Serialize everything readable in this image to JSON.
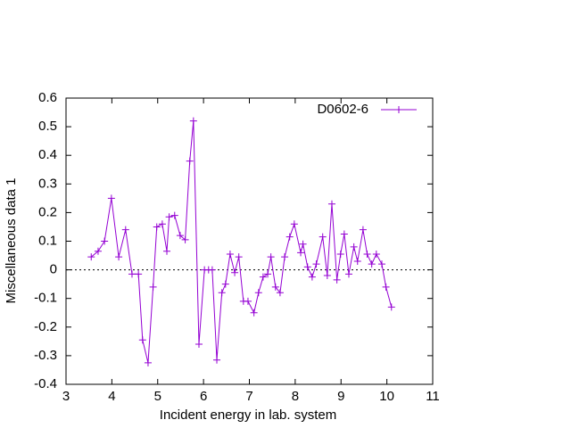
{
  "chart_data": {
    "type": "line",
    "xlabel": "Incident energy in lab. system",
    "ylabel": "Miscellaneous data 1",
    "xlim": [
      3,
      11
    ],
    "xticks": [
      3,
      4,
      5,
      6,
      7,
      8,
      9,
      10,
      11
    ],
    "ylim": [
      -0.4,
      0.6
    ],
    "yticks": [
      -0.4,
      -0.3,
      -0.2,
      -0.1,
      0,
      0.1,
      0.2,
      0.3,
      0.4,
      0.5,
      0.6
    ],
    "zero_line": true,
    "legend": "top-right",
    "x": [
      3.55,
      3.7,
      3.84,
      3.99,
      4.15,
      4.3,
      4.44,
      4.58,
      4.67,
      4.79,
      4.9,
      4.98,
      5.1,
      5.2,
      5.25,
      5.37,
      5.49,
      5.6,
      5.7,
      5.78,
      5.9,
      6.02,
      6.11,
      6.19,
      6.29,
      6.4,
      6.48,
      6.58,
      6.68,
      6.77,
      6.87,
      6.97,
      7.1,
      7.2,
      7.3,
      7.4,
      7.47,
      7.57,
      7.67,
      7.77,
      7.88,
      7.98,
      8.12,
      8.17,
      8.27,
      8.37,
      8.46,
      8.6,
      8.7,
      8.8,
      8.91,
      8.99,
      9.07,
      9.17,
      9.28,
      9.36,
      9.48,
      9.57,
      9.67,
      9.77,
      9.89,
      9.98,
      10.1
    ],
    "series": [
      {
        "name": "D0602-6",
        "color": "#9400d3",
        "values": [
          0.045,
          0.065,
          0.1,
          0.25,
          0.045,
          0.14,
          -0.015,
          -0.015,
          -0.245,
          -0.325,
          -0.06,
          0.15,
          0.16,
          0.065,
          0.185,
          0.19,
          0.12,
          0.105,
          0.38,
          0.52,
          -0.26,
          0,
          0,
          0,
          -0.315,
          -0.08,
          -0.05,
          0.055,
          -0.01,
          0.045,
          -0.11,
          -0.11,
          -0.15,
          -0.08,
          -0.025,
          -0.015,
          0.045,
          -0.06,
          -0.08,
          0.045,
          0.115,
          0.16,
          0.06,
          0.09,
          0.01,
          -0.025,
          0.02,
          0.115,
          -0.02,
          0.23,
          -0.035,
          0.055,
          0.125,
          -0.015,
          0.08,
          0.03,
          0.14,
          0.055,
          0.02,
          0.055,
          0.02,
          -0.06,
          -0.13
        ]
      }
    ]
  }
}
